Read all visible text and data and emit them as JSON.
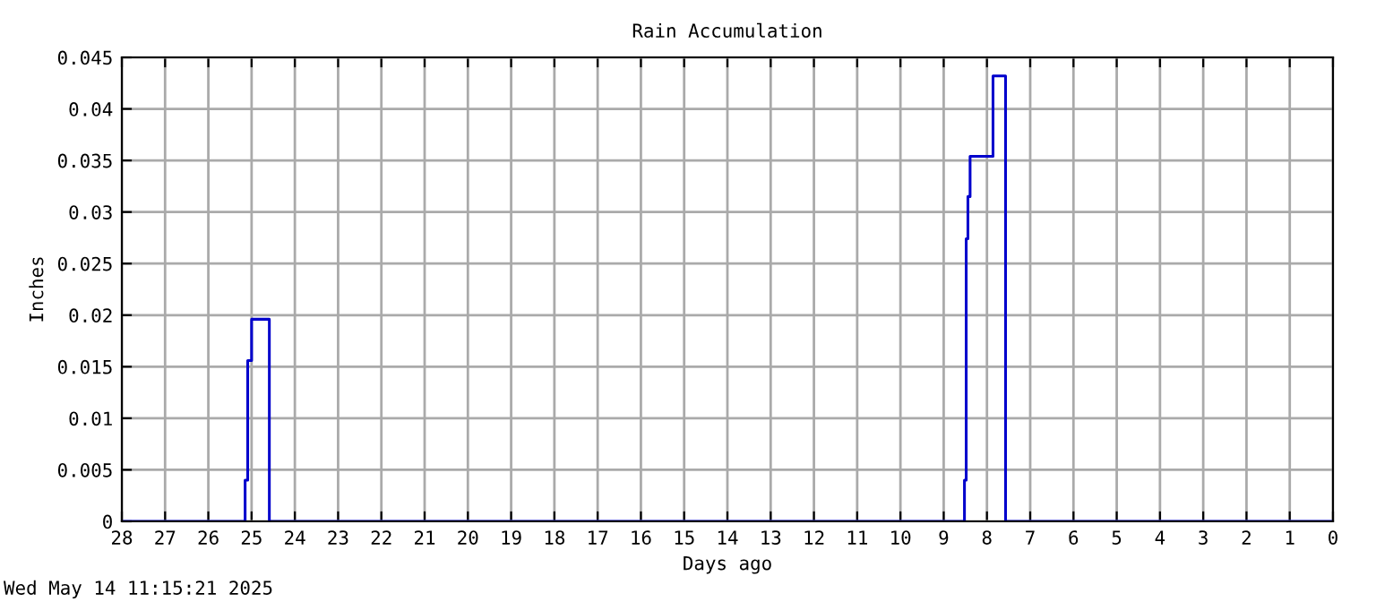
{
  "chart_data": {
    "type": "step",
    "title": "Rain Accumulation",
    "xlabel": "Days ago",
    "ylabel": "Inches",
    "annotations": [
      "Wed May 14 11:15:21 2025"
    ],
    "series": [
      {
        "color": "#0000cc",
        "x": [
          28,
          25.15,
          25.09,
          25.0,
          24.59,
          8.52,
          8.48,
          8.44,
          8.39,
          7.86,
          7.57,
          0
        ],
        "values": [
          0,
          0.004,
          0.0156,
          0.0196,
          0,
          0.004,
          0.0274,
          0.0315,
          0.0354,
          0.0432,
          0,
          0
        ]
      }
    ],
    "xlim": [
      28,
      0
    ],
    "xticks": [
      28,
      27,
      26,
      25,
      24,
      23,
      22,
      21,
      20,
      19,
      18,
      17,
      16,
      15,
      14,
      13,
      12,
      11,
      10,
      9,
      8,
      7,
      6,
      5,
      4,
      3,
      2,
      1,
      0
    ],
    "ylim": [
      0,
      0.045
    ],
    "yticks": [
      0,
      0.005,
      0.01,
      0.015,
      0.02,
      0.025,
      0.03,
      0.035,
      0.04,
      0.045
    ],
    "grid": true,
    "legend": false
  }
}
